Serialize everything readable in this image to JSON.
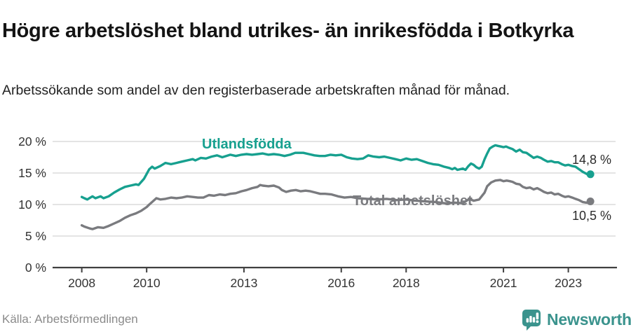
{
  "header": {
    "title": "Högre arbetslöshet bland utrikes- än inrikesfödda i Botkyrka",
    "subtitle": "Arbetssökande som andel av den registerbaserade arbetskraften månad för månad."
  },
  "chart_data": {
    "type": "line",
    "title": "Högre arbetslöshet bland utrikes- än inrikesfödda i Botkyrka",
    "x_axis": {
      "ticks": [
        2008,
        2010,
        2013,
        2016,
        2018,
        2021,
        2023
      ],
      "range": [
        2007.1,
        2024.5
      ],
      "grid": false
    },
    "y_axis": {
      "ticks": [
        0,
        5,
        10,
        15,
        20
      ],
      "tick_suffix": " %",
      "range": [
        0,
        20
      ],
      "grid": true
    },
    "legend_position": "inline-labels",
    "style": {
      "grid_color": "#dcdcdc",
      "axis_color": "#404040",
      "tick_text_color": "#333333"
    },
    "series": [
      {
        "id": "utlandsfodda",
        "name": "Utlandsfödda",
        "color": "#17a08f",
        "end_value": 14.8,
        "end_label": "14,8 %",
        "points": [
          [
            2008.0,
            11.2
          ],
          [
            2008.08,
            11.0
          ],
          [
            2008.17,
            10.8
          ],
          [
            2008.33,
            11.3
          ],
          [
            2008.42,
            11.0
          ],
          [
            2008.58,
            11.3
          ],
          [
            2008.67,
            11.0
          ],
          [
            2008.83,
            11.3
          ],
          [
            2009.0,
            11.9
          ],
          [
            2009.17,
            12.4
          ],
          [
            2009.33,
            12.8
          ],
          [
            2009.5,
            13.0
          ],
          [
            2009.67,
            13.2
          ],
          [
            2009.75,
            13.1
          ],
          [
            2009.92,
            14.1
          ],
          [
            2010.08,
            15.6
          ],
          [
            2010.17,
            16.0
          ],
          [
            2010.25,
            15.7
          ],
          [
            2010.42,
            16.1
          ],
          [
            2010.58,
            16.6
          ],
          [
            2010.75,
            16.4
          ],
          [
            2010.92,
            16.6
          ],
          [
            2011.08,
            16.8
          ],
          [
            2011.25,
            17.0
          ],
          [
            2011.42,
            17.2
          ],
          [
            2011.5,
            17.0
          ],
          [
            2011.67,
            17.4
          ],
          [
            2011.83,
            17.3
          ],
          [
            2012.0,
            17.6
          ],
          [
            2012.17,
            17.8
          ],
          [
            2012.33,
            17.5
          ],
          [
            2012.58,
            17.9
          ],
          [
            2012.75,
            17.7
          ],
          [
            2012.92,
            17.9
          ],
          [
            2013.08,
            18.0
          ],
          [
            2013.25,
            17.9
          ],
          [
            2013.42,
            18.0
          ],
          [
            2013.58,
            18.1
          ],
          [
            2013.75,
            17.9
          ],
          [
            2013.92,
            18.0
          ],
          [
            2014.08,
            17.9
          ],
          [
            2014.25,
            17.7
          ],
          [
            2014.42,
            17.9
          ],
          [
            2014.58,
            18.2
          ],
          [
            2014.83,
            18.2
          ],
          [
            2015.0,
            18.0
          ],
          [
            2015.17,
            17.8
          ],
          [
            2015.33,
            17.7
          ],
          [
            2015.5,
            17.7
          ],
          [
            2015.67,
            17.9
          ],
          [
            2015.83,
            17.8
          ],
          [
            2016.0,
            17.9
          ],
          [
            2016.17,
            17.5
          ],
          [
            2016.33,
            17.3
          ],
          [
            2016.5,
            17.2
          ],
          [
            2016.67,
            17.3
          ],
          [
            2016.83,
            17.8
          ],
          [
            2017.0,
            17.6
          ],
          [
            2017.17,
            17.5
          ],
          [
            2017.33,
            17.6
          ],
          [
            2017.5,
            17.4
          ],
          [
            2017.67,
            17.2
          ],
          [
            2017.83,
            17.0
          ],
          [
            2018.0,
            17.3
          ],
          [
            2018.17,
            17.1
          ],
          [
            2018.33,
            17.2
          ],
          [
            2018.5,
            16.9
          ],
          [
            2018.67,
            16.6
          ],
          [
            2018.83,
            16.4
          ],
          [
            2019.0,
            16.3
          ],
          [
            2019.17,
            16.0
          ],
          [
            2019.33,
            15.8
          ],
          [
            2019.42,
            15.6
          ],
          [
            2019.5,
            15.8
          ],
          [
            2019.58,
            15.5
          ],
          [
            2019.75,
            15.7
          ],
          [
            2019.83,
            15.5
          ],
          [
            2019.92,
            16.1
          ],
          [
            2020.0,
            16.5
          ],
          [
            2020.08,
            16.3
          ],
          [
            2020.17,
            15.9
          ],
          [
            2020.25,
            15.7
          ],
          [
            2020.33,
            16.0
          ],
          [
            2020.42,
            17.2
          ],
          [
            2020.5,
            18.1
          ],
          [
            2020.58,
            18.9
          ],
          [
            2020.67,
            19.2
          ],
          [
            2020.75,
            19.4
          ],
          [
            2020.83,
            19.3
          ],
          [
            2020.92,
            19.2
          ],
          [
            2021.0,
            19.1
          ],
          [
            2021.08,
            19.2
          ],
          [
            2021.17,
            19.0
          ],
          [
            2021.28,
            18.8
          ],
          [
            2021.39,
            18.4
          ],
          [
            2021.5,
            18.7
          ],
          [
            2021.6,
            18.3
          ],
          [
            2021.71,
            18.2
          ],
          [
            2021.82,
            17.8
          ],
          [
            2021.93,
            17.4
          ],
          [
            2022.04,
            17.6
          ],
          [
            2022.15,
            17.4
          ],
          [
            2022.25,
            17.1
          ],
          [
            2022.36,
            16.8
          ],
          [
            2022.47,
            16.9
          ],
          [
            2022.58,
            16.7
          ],
          [
            2022.69,
            16.7
          ],
          [
            2022.8,
            16.4
          ],
          [
            2022.9,
            16.2
          ],
          [
            2023.0,
            16.3
          ],
          [
            2023.12,
            16.1
          ],
          [
            2023.22,
            16.0
          ],
          [
            2023.33,
            15.6
          ],
          [
            2023.44,
            15.2
          ],
          [
            2023.55,
            14.9
          ],
          [
            2023.62,
            14.7
          ],
          [
            2023.68,
            14.8
          ]
        ]
      },
      {
        "id": "total",
        "name": "Total arbetslöshet",
        "color": "#7a7b7f",
        "end_value": 10.5,
        "end_label": "10,5 %",
        "points": [
          [
            2008.0,
            6.7
          ],
          [
            2008.08,
            6.5
          ],
          [
            2008.25,
            6.2
          ],
          [
            2008.33,
            6.1
          ],
          [
            2008.5,
            6.4
          ],
          [
            2008.67,
            6.3
          ],
          [
            2008.83,
            6.6
          ],
          [
            2009.0,
            7.0
          ],
          [
            2009.17,
            7.4
          ],
          [
            2009.33,
            7.9
          ],
          [
            2009.5,
            8.3
          ],
          [
            2009.67,
            8.6
          ],
          [
            2009.83,
            9.0
          ],
          [
            2010.0,
            9.6
          ],
          [
            2010.08,
            10.0
          ],
          [
            2010.17,
            10.4
          ],
          [
            2010.3,
            11.0
          ],
          [
            2010.42,
            10.8
          ],
          [
            2010.58,
            10.9
          ],
          [
            2010.75,
            11.1
          ],
          [
            2010.92,
            11.0
          ],
          [
            2011.08,
            11.1
          ],
          [
            2011.25,
            11.3
          ],
          [
            2011.42,
            11.2
          ],
          [
            2011.58,
            11.1
          ],
          [
            2011.75,
            11.1
          ],
          [
            2011.92,
            11.5
          ],
          [
            2012.08,
            11.4
          ],
          [
            2012.25,
            11.6
          ],
          [
            2012.42,
            11.5
          ],
          [
            2012.58,
            11.7
          ],
          [
            2012.75,
            11.8
          ],
          [
            2012.92,
            12.1
          ],
          [
            2013.08,
            12.3
          ],
          [
            2013.25,
            12.6
          ],
          [
            2013.42,
            12.8
          ],
          [
            2013.5,
            13.1
          ],
          [
            2013.58,
            13.0
          ],
          [
            2013.75,
            12.9
          ],
          [
            2013.92,
            13.0
          ],
          [
            2014.08,
            12.7
          ],
          [
            2014.17,
            12.3
          ],
          [
            2014.3,
            12.0
          ],
          [
            2014.45,
            12.2
          ],
          [
            2014.6,
            12.3
          ],
          [
            2014.75,
            12.1
          ],
          [
            2014.9,
            12.2
          ],
          [
            2015.05,
            12.1
          ],
          [
            2015.2,
            11.9
          ],
          [
            2015.35,
            11.7
          ],
          [
            2015.5,
            11.7
          ],
          [
            2015.7,
            11.6
          ],
          [
            2015.9,
            11.3
          ],
          [
            2016.1,
            11.1
          ],
          [
            2016.3,
            11.2
          ],
          [
            2016.5,
            11.0
          ],
          [
            2016.8,
            10.9
          ],
          [
            2017.1,
            10.8
          ],
          [
            2017.4,
            10.9
          ],
          [
            2017.7,
            10.7
          ],
          [
            2018.0,
            10.8
          ],
          [
            2018.3,
            10.6
          ],
          [
            2018.6,
            10.5
          ],
          [
            2018.9,
            10.4
          ],
          [
            2019.2,
            10.2
          ],
          [
            2019.5,
            10.3
          ],
          [
            2019.75,
            10.2
          ],
          [
            2019.95,
            10.9
          ],
          [
            2020.08,
            10.6
          ],
          [
            2020.25,
            10.8
          ],
          [
            2020.42,
            11.9
          ],
          [
            2020.5,
            12.9
          ],
          [
            2020.62,
            13.5
          ],
          [
            2020.75,
            13.8
          ],
          [
            2020.9,
            13.9
          ],
          [
            2021.0,
            13.7
          ],
          [
            2021.1,
            13.8
          ],
          [
            2021.2,
            13.7
          ],
          [
            2021.28,
            13.6
          ],
          [
            2021.39,
            13.3
          ],
          [
            2021.5,
            13.2
          ],
          [
            2021.6,
            12.8
          ],
          [
            2021.71,
            12.6
          ],
          [
            2021.82,
            12.7
          ],
          [
            2021.93,
            12.4
          ],
          [
            2022.04,
            12.6
          ],
          [
            2022.15,
            12.3
          ],
          [
            2022.25,
            12.0
          ],
          [
            2022.36,
            11.8
          ],
          [
            2022.47,
            11.9
          ],
          [
            2022.58,
            11.6
          ],
          [
            2022.69,
            11.7
          ],
          [
            2022.8,
            11.4
          ],
          [
            2022.9,
            11.2
          ],
          [
            2023.0,
            11.3
          ],
          [
            2023.12,
            11.1
          ],
          [
            2023.22,
            10.9
          ],
          [
            2023.33,
            10.7
          ],
          [
            2023.44,
            10.4
          ],
          [
            2023.55,
            10.3
          ],
          [
            2023.62,
            10.3
          ],
          [
            2023.68,
            10.5
          ]
        ]
      }
    ]
  },
  "footer": {
    "source": "Källa: Arbetsförmedlingen",
    "logo_text": "Newsworthy",
    "logo_color": "#3a938d",
    "logo_icon": "newsworthy-speech-bubble-bar-chart-icon"
  }
}
